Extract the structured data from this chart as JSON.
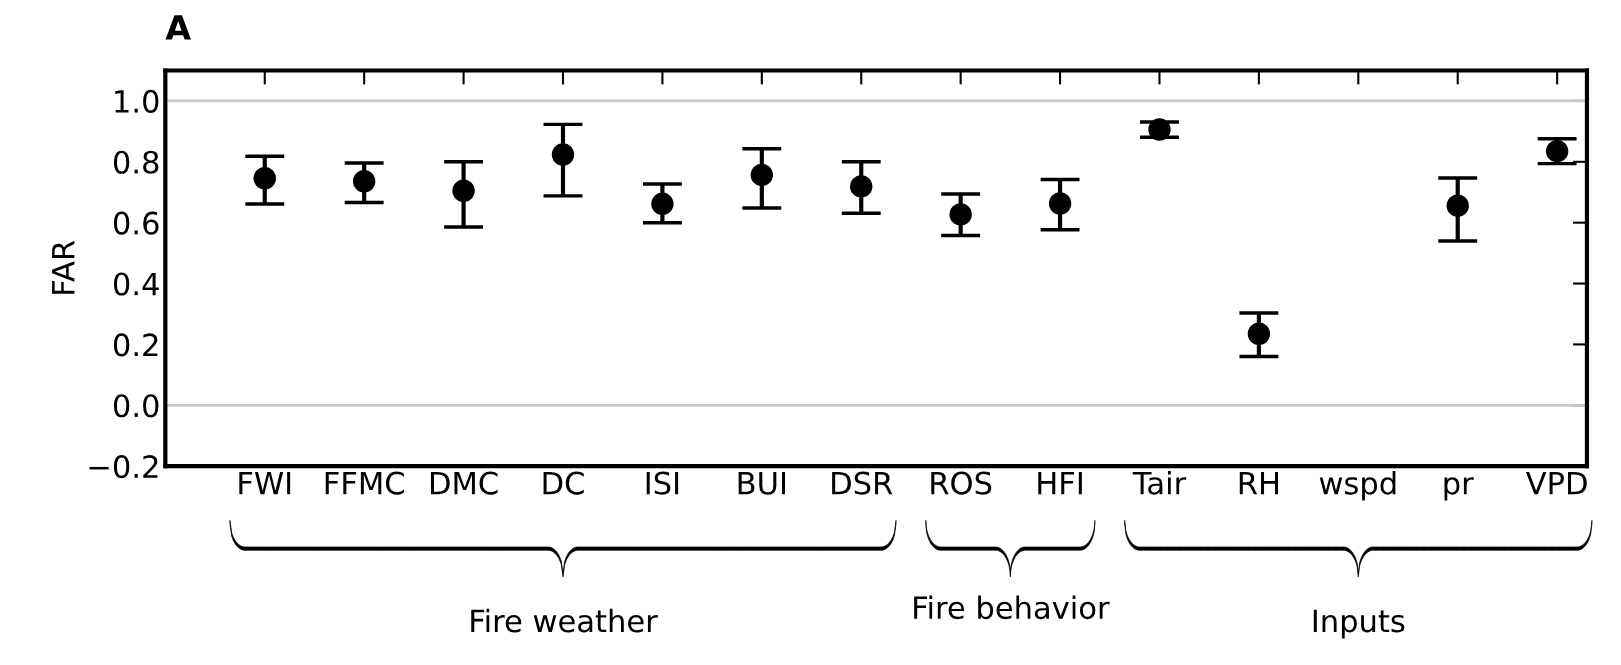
{
  "chart_data": {
    "type": "scatter",
    "title": "A",
    "ylabel": "FAR",
    "categories": [
      "FWI",
      "FFMC",
      "DMC",
      "DC",
      "ISI",
      "BUI",
      "DSR",
      "ROS",
      "HFI",
      "Tair",
      "RH",
      "wspd",
      "pr",
      "VPD"
    ],
    "series": [
      {
        "color": "#000000",
        "values": [
          0.746,
          0.736,
          0.705,
          0.824,
          0.662,
          0.757,
          0.719,
          0.627,
          0.663,
          0.906,
          0.235,
          null,
          0.656,
          0.835
        ],
        "errors": [
          [
            0.661,
            0.818
          ],
          [
            0.666,
            0.796
          ],
          [
            0.586,
            0.8
          ],
          [
            0.688,
            0.923
          ],
          [
            0.6,
            0.727
          ],
          [
            0.648,
            0.843
          ],
          [
            0.631,
            0.8
          ],
          [
            0.558,
            0.694
          ],
          [
            0.577,
            0.742
          ],
          [
            0.881,
            0.931
          ],
          [
            0.16,
            0.303
          ],
          null,
          [
            0.54,
            0.747
          ],
          [
            0.794,
            0.876
          ]
        ]
      }
    ],
    "marker": "circle",
    "ylim": [
      -0.2,
      1.1
    ],
    "yticks": [
      {
        "value": -0.2,
        "label": "−0.2"
      },
      {
        "value": 0.0,
        "label": "0.0"
      },
      {
        "value": 0.2,
        "label": "0.2"
      },
      {
        "value": 0.4,
        "label": "0.4"
      },
      {
        "value": 0.6,
        "label": "0.6"
      },
      {
        "value": 0.8,
        "label": "0.8"
      },
      {
        "value": 1.0,
        "label": "1.0"
      }
    ],
    "ref_lines": [
      {
        "axis": "y",
        "value": 1.0,
        "color": "#c8c8c8"
      },
      {
        "axis": "y",
        "value": 0.0,
        "color": "#c8c8c8"
      }
    ],
    "annotations": [
      "Fire weather",
      "Fire behavior",
      "Inputs"
    ],
    "grid": false,
    "legend": false
  }
}
